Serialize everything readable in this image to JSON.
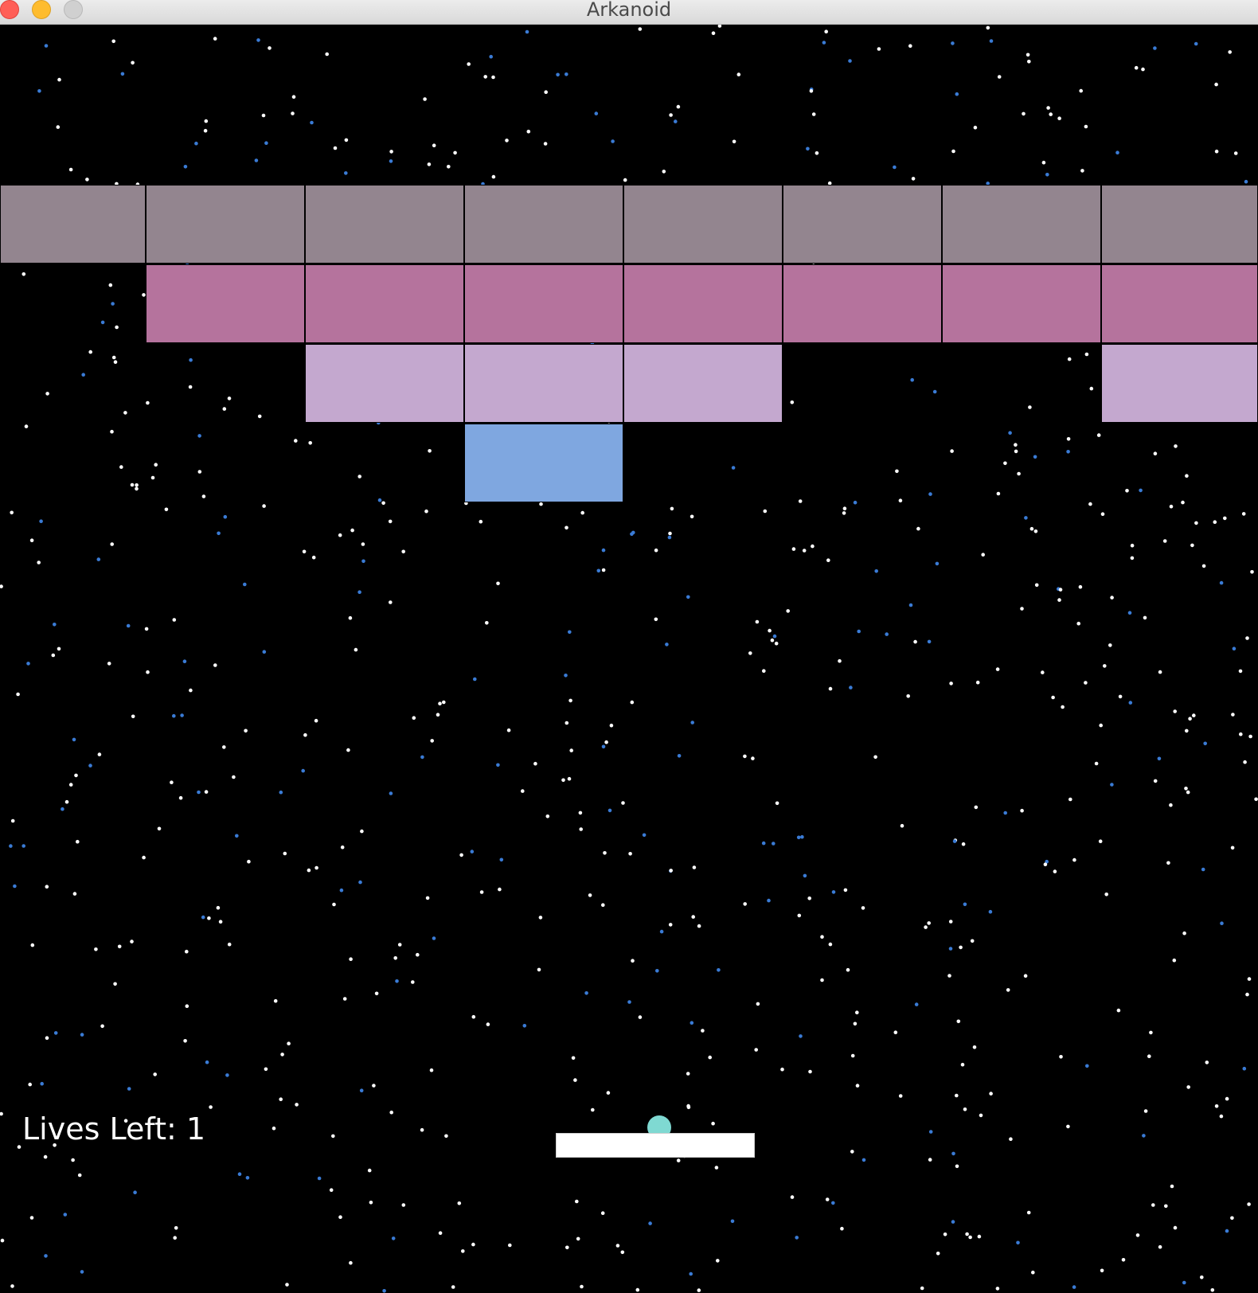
{
  "window": {
    "title": "Arkanoid",
    "controls": [
      "close-button",
      "minimize-button",
      "zoom-button"
    ]
  },
  "hud": {
    "lives_label": "Lives Left: 1"
  },
  "colors": {
    "background": "#000000",
    "paddle": "#ffffff",
    "ball": "#7fd9d2",
    "star_white": "#ffffff",
    "star_blue": "#3a7bd5",
    "brick_rows": [
      "#93858f",
      "#b5739d",
      "#c4a8cf",
      "#7fa7e0"
    ]
  },
  "bricks": {
    "rows": [
      [
        1,
        1,
        1,
        1,
        1,
        1,
        1,
        1
      ],
      [
        0,
        1,
        1,
        1,
        1,
        1,
        1,
        1
      ],
      [
        0,
        0,
        1,
        1,
        1,
        0,
        0,
        1
      ],
      [
        0,
        0,
        0,
        1,
        0,
        0,
        0,
        0
      ]
    ]
  }
}
